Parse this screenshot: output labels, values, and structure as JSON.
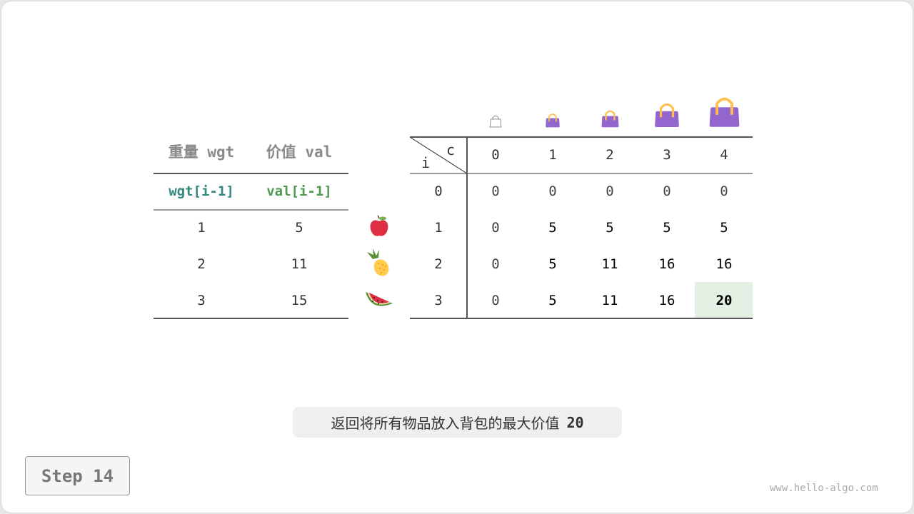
{
  "items_table": {
    "headers": [
      "重量 wgt",
      "价值 val"
    ],
    "subheaders": [
      "wgt[i-1]",
      "val[i-1]"
    ],
    "rows": [
      [
        "1",
        "5"
      ],
      [
        "2",
        "11"
      ],
      [
        "3",
        "15"
      ]
    ],
    "fruits": [
      "apple-icon",
      "pineapple-icon",
      "watermelon-icon"
    ],
    "colors": {
      "wgt": "#33877e",
      "val": "#4f9a50"
    }
  },
  "dp_table": {
    "corner_col": "c",
    "corner_row": "i",
    "col_headers": [
      "0",
      "1",
      "2",
      "3",
      "4"
    ],
    "row_headers": [
      "0",
      "1",
      "2",
      "3"
    ],
    "cells": [
      [
        "0",
        "0",
        "0",
        "0",
        "0"
      ],
      [
        "0",
        "5",
        "5",
        "5",
        "5"
      ],
      [
        "0",
        "5",
        "11",
        "16",
        "16"
      ],
      [
        "0",
        "5",
        "11",
        "16",
        "20"
      ]
    ],
    "highlight": {
      "row": 3,
      "col": 4,
      "color": "#e3f0e3"
    },
    "bag_icons": [
      "bag-icon-empty",
      "bag-icon",
      "bag-icon",
      "bag-icon",
      "bag-icon"
    ]
  },
  "caption": {
    "text": "返回将所有物品放入背包的最大价值",
    "value": "20"
  },
  "step_label": "Step 14",
  "watermark": "www.hello-algo.com"
}
